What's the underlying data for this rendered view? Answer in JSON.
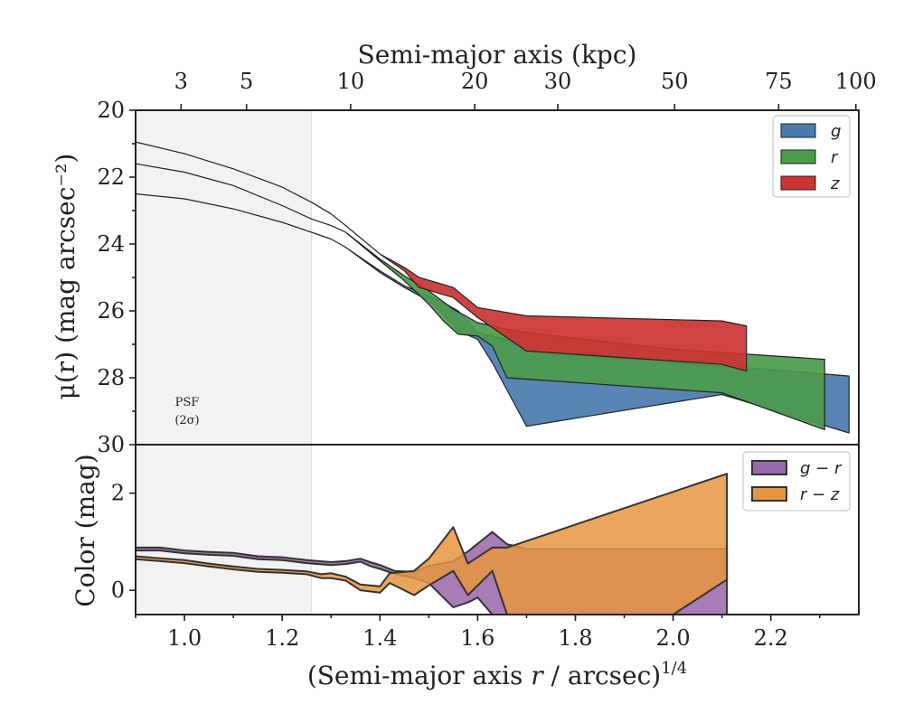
{
  "chart_data": [
    {
      "type": "area",
      "panel": "top",
      "top_axis": {
        "label": "Semi-major axis (kpc)",
        "ticks": [
          {
            "label": "3",
            "x": 0.993
          },
          {
            "label": "5",
            "x": 1.127
          },
          {
            "label": "10",
            "x": 1.34
          },
          {
            "label": "20",
            "x": 1.594
          },
          {
            "label": "30",
            "x": 1.764
          },
          {
            "label": "50",
            "x": 2.003
          },
          {
            "label": "75",
            "x": 2.216
          },
          {
            "label": "100",
            "x": 2.374
          }
        ]
      },
      "ylabel": "μ(r) (mag arcsec⁻²)",
      "yticks": [
        "20",
        "22",
        "24",
        "26",
        "28",
        "30"
      ],
      "ylim": [
        30,
        20
      ],
      "xlim": [
        0.9,
        2.38
      ],
      "psf_region": {
        "x_max": 1.26,
        "label_line1": "PSF",
        "label_line2": "(2σ)"
      },
      "legend": {
        "position": "upper right",
        "entries": [
          "g",
          "r",
          "z"
        ]
      },
      "series": [
        {
          "name": "g",
          "color": "#4a7aab",
          "upper": [
            [
              0.9,
              22.5
            ],
            [
              1.0,
              22.65
            ],
            [
              1.1,
              22.95
            ],
            [
              1.2,
              23.35
            ],
            [
              1.26,
              23.65
            ],
            [
              1.3,
              23.85
            ],
            [
              1.33,
              24.1
            ],
            [
              1.4,
              24.8
            ],
            [
              1.45,
              25.25
            ],
            [
              1.5,
              25.55
            ],
            [
              1.53,
              25.75
            ],
            [
              1.56,
              26.0
            ],
            [
              1.6,
              26.65
            ],
            [
              1.66,
              26.85
            ],
            [
              1.7,
              27.2
            ],
            [
              2.0,
              27.55
            ],
            [
              2.2,
              27.75
            ],
            [
              2.36,
              27.95
            ]
          ],
          "lower": [
            [
              0.9,
              22.5
            ],
            [
              1.0,
              22.65
            ],
            [
              1.1,
              22.95
            ],
            [
              1.2,
              23.35
            ],
            [
              1.26,
              23.65
            ],
            [
              1.3,
              23.85
            ],
            [
              1.33,
              24.1
            ],
            [
              1.4,
              24.85
            ],
            [
              1.45,
              25.3
            ],
            [
              1.5,
              25.7
            ],
            [
              1.53,
              26.1
            ],
            [
              1.56,
              26.6
            ],
            [
              1.6,
              26.85
            ],
            [
              1.63,
              27.55
            ],
            [
              1.7,
              29.45
            ],
            [
              2.1,
              28.5
            ],
            [
              2.36,
              29.65
            ]
          ]
        },
        {
          "name": "r",
          "color": "#4c9a4c",
          "upper": [
            [
              0.9,
              21.6
            ],
            [
              1.0,
              21.85
            ],
            [
              1.1,
              22.25
            ],
            [
              1.2,
              22.85
            ],
            [
              1.26,
              23.25
            ],
            [
              1.3,
              23.45
            ],
            [
              1.33,
              23.65
            ],
            [
              1.4,
              24.45
            ],
            [
              1.45,
              24.95
            ],
            [
              1.5,
              25.4
            ],
            [
              1.55,
              25.95
            ],
            [
              1.6,
              26.35
            ],
            [
              1.66,
              26.55
            ],
            [
              1.7,
              26.65
            ],
            [
              2.0,
              27.15
            ],
            [
              2.31,
              27.45
            ]
          ],
          "lower": [
            [
              0.9,
              21.6
            ],
            [
              1.0,
              21.85
            ],
            [
              1.1,
              22.25
            ],
            [
              1.2,
              22.85
            ],
            [
              1.26,
              23.25
            ],
            [
              1.3,
              23.45
            ],
            [
              1.33,
              23.65
            ],
            [
              1.4,
              24.5
            ],
            [
              1.45,
              25.1
            ],
            [
              1.5,
              25.8
            ],
            [
              1.53,
              26.3
            ],
            [
              1.56,
              26.7
            ],
            [
              1.6,
              26.75
            ],
            [
              1.63,
              27.05
            ],
            [
              1.66,
              28.0
            ],
            [
              2.1,
              28.45
            ],
            [
              2.31,
              29.55
            ]
          ]
        },
        {
          "name": "z",
          "color": "#cc3333",
          "upper": [
            [
              0.9,
              20.95
            ],
            [
              1.0,
              21.3
            ],
            [
              1.1,
              21.75
            ],
            [
              1.2,
              22.3
            ],
            [
              1.26,
              22.75
            ],
            [
              1.3,
              23.1
            ],
            [
              1.33,
              23.45
            ],
            [
              1.4,
              24.3
            ],
            [
              1.45,
              24.7
            ],
            [
              1.48,
              25.0
            ],
            [
              1.55,
              25.3
            ],
            [
              1.6,
              25.9
            ],
            [
              1.7,
              26.15
            ],
            [
              2.1,
              26.3
            ],
            [
              2.15,
              26.45
            ]
          ],
          "lower": [
            [
              0.9,
              20.95
            ],
            [
              1.0,
              21.3
            ],
            [
              1.1,
              21.75
            ],
            [
              1.2,
              22.3
            ],
            [
              1.26,
              22.75
            ],
            [
              1.3,
              23.1
            ],
            [
              1.33,
              23.45
            ],
            [
              1.4,
              24.3
            ],
            [
              1.45,
              24.8
            ],
            [
              1.48,
              25.3
            ],
            [
              1.55,
              25.6
            ],
            [
              1.6,
              26.2
            ],
            [
              1.7,
              27.2
            ],
            [
              2.1,
              27.6
            ],
            [
              2.15,
              27.8
            ]
          ]
        }
      ]
    },
    {
      "type": "area",
      "panel": "bottom",
      "xlabel": "(Semi-major axis r / arcsec)^1/4",
      "xlabel_main": "(Semi-major axis ",
      "xlabel_var": "r",
      "xlabel_rest": " / arcsec)",
      "xlabel_exp": "1/4",
      "xticks": [
        "1.0",
        "1.2",
        "1.4",
        "1.6",
        "1.8",
        "2.0",
        "2.2"
      ],
      "ylabel": "Color (mag)",
      "yticks": [
        "0",
        "2"
      ],
      "ylim": [
        -0.5,
        3.0
      ],
      "xlim": [
        0.9,
        2.38
      ],
      "legend": {
        "position": "upper right",
        "entries": [
          "g − r",
          "r − z"
        ]
      },
      "series": [
        {
          "name": "g − r",
          "color": "#9966aa",
          "upper": [
            [
              0.9,
              0.88
            ],
            [
              0.95,
              0.88
            ],
            [
              1.0,
              0.82
            ],
            [
              1.05,
              0.79
            ],
            [
              1.1,
              0.77
            ],
            [
              1.15,
              0.7
            ],
            [
              1.2,
              0.68
            ],
            [
              1.25,
              0.62
            ],
            [
              1.3,
              0.58
            ],
            [
              1.33,
              0.6
            ],
            [
              1.36,
              0.65
            ],
            [
              1.38,
              0.58
            ],
            [
              1.4,
              0.52
            ],
            [
              1.43,
              0.4
            ],
            [
              1.47,
              0.38
            ],
            [
              1.5,
              0.5
            ],
            [
              1.55,
              0.6
            ],
            [
              1.58,
              0.8
            ],
            [
              1.63,
              1.2
            ],
            [
              1.66,
              0.95
            ],
            [
              1.7,
              0.85
            ],
            [
              2.0,
              0.85
            ],
            [
              2.11,
              0.85
            ]
          ],
          "lower": [
            [
              0.9,
              0.82
            ],
            [
              0.95,
              0.82
            ],
            [
              1.0,
              0.76
            ],
            [
              1.05,
              0.73
            ],
            [
              1.1,
              0.71
            ],
            [
              1.15,
              0.64
            ],
            [
              1.2,
              0.62
            ],
            [
              1.25,
              0.56
            ],
            [
              1.3,
              0.52
            ],
            [
              1.33,
              0.54
            ],
            [
              1.36,
              0.59
            ],
            [
              1.38,
              0.5
            ],
            [
              1.4,
              0.44
            ],
            [
              1.43,
              0.34
            ],
            [
              1.47,
              0.25
            ],
            [
              1.5,
              0.15
            ],
            [
              1.55,
              -0.35
            ],
            [
              1.58,
              -0.25
            ],
            [
              1.6,
              -0.15
            ],
            [
              1.63,
              -0.5
            ],
            [
              1.7,
              -0.5
            ],
            [
              2.0,
              -0.5
            ],
            [
              2.11,
              -0.5
            ]
          ]
        },
        {
          "name": "r − z",
          "color": "#e6953f",
          "upper": [
            [
              0.9,
              0.7
            ],
            [
              0.95,
              0.66
            ],
            [
              1.0,
              0.62
            ],
            [
              1.05,
              0.55
            ],
            [
              1.1,
              0.49
            ],
            [
              1.15,
              0.44
            ],
            [
              1.2,
              0.42
            ],
            [
              1.25,
              0.39
            ],
            [
              1.28,
              0.33
            ],
            [
              1.3,
              0.35
            ],
            [
              1.33,
              0.28
            ],
            [
              1.36,
              0.12
            ],
            [
              1.4,
              0.08
            ],
            [
              1.42,
              0.35
            ],
            [
              1.47,
              0.4
            ],
            [
              1.5,
              0.65
            ],
            [
              1.55,
              1.3
            ],
            [
              1.58,
              0.55
            ],
            [
              1.63,
              0.88
            ],
            [
              1.66,
              0.88
            ],
            [
              2.11,
              2.4
            ]
          ],
          "lower": [
            [
              0.9,
              0.64
            ],
            [
              0.95,
              0.6
            ],
            [
              1.0,
              0.56
            ],
            [
              1.05,
              0.49
            ],
            [
              1.1,
              0.43
            ],
            [
              1.15,
              0.38
            ],
            [
              1.2,
              0.36
            ],
            [
              1.25,
              0.33
            ],
            [
              1.28,
              0.25
            ],
            [
              1.3,
              0.25
            ],
            [
              1.33,
              0.2
            ],
            [
              1.36,
              0.0
            ],
            [
              1.4,
              -0.05
            ],
            [
              1.42,
              0.15
            ],
            [
              1.47,
              -0.1
            ],
            [
              1.5,
              0.1
            ],
            [
              1.55,
              0.4
            ],
            [
              1.58,
              -0.1
            ],
            [
              1.63,
              0.4
            ],
            [
              1.66,
              -0.5
            ],
            [
              1.7,
              -0.5
            ],
            [
              2.0,
              -0.5
            ],
            [
              2.11,
              0.22
            ]
          ]
        }
      ]
    }
  ]
}
